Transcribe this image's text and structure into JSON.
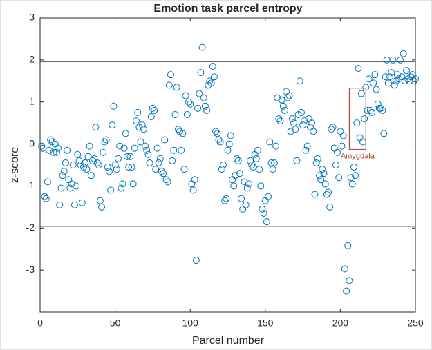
{
  "chart_data": {
    "type": "scatter",
    "title": "Emotion task parcel entropy",
    "xlabel": "Parcel number",
    "ylabel": "z-score",
    "xlim": [
      0,
      250
    ],
    "ylim": [
      -4,
      3
    ],
    "xticks": [
      0,
      50,
      100,
      150,
      200,
      250
    ],
    "yticks": [
      -3,
      -2,
      -1,
      0,
      1,
      2,
      3
    ],
    "color": "#0072bd",
    "hlines": [
      1.96,
      -1.96
    ],
    "annotation": {
      "label": "Amygdala",
      "x": [
        206,
        217
      ],
      "y": [
        -0.13,
        1.33
      ],
      "color": "#b5483a"
    },
    "x": [
      1,
      2,
      3,
      4,
      5,
      6,
      7,
      8,
      9,
      10,
      11,
      12,
      13,
      14,
      15,
      16,
      17,
      18,
      19,
      20,
      21,
      22,
      23,
      24,
      25,
      26,
      27,
      28,
      29,
      30,
      31,
      32,
      33,
      34,
      35,
      36,
      37,
      38,
      39,
      40,
      41,
      42,
      43,
      44,
      45,
      46,
      47,
      48,
      49,
      50,
      51,
      52,
      53,
      54,
      55,
      56,
      57,
      58,
      59,
      60,
      61,
      62,
      63,
      64,
      65,
      66,
      67,
      68,
      69,
      70,
      71,
      72,
      73,
      74,
      75,
      76,
      77,
      78,
      79,
      80,
      81,
      82,
      83,
      84,
      85,
      86,
      87,
      88,
      89,
      90,
      91,
      92,
      93,
      94,
      95,
      96,
      97,
      98,
      99,
      100,
      101,
      102,
      103,
      104,
      105,
      106,
      107,
      108,
      109,
      110,
      111,
      112,
      113,
      114,
      115,
      116,
      117,
      118,
      119,
      120,
      121,
      122,
      123,
      124,
      125,
      126,
      127,
      128,
      129,
      130,
      131,
      132,
      133,
      134,
      135,
      136,
      137,
      138,
      139,
      140,
      141,
      142,
      143,
      144,
      145,
      146,
      147,
      148,
      149,
      150,
      151,
      152,
      153,
      154,
      155,
      156,
      157,
      158,
      159,
      160,
      161,
      162,
      163,
      164,
      165,
      166,
      167,
      168,
      169,
      170,
      171,
      172,
      173,
      174,
      175,
      176,
      177,
      178,
      179,
      180,
      181,
      182,
      183,
      184,
      185,
      186,
      187,
      188,
      189,
      190,
      191,
      192,
      193,
      194,
      195,
      196,
      197,
      198,
      199,
      200,
      201,
      202,
      203,
      204,
      205,
      206,
      207,
      208,
      209,
      210,
      211,
      212,
      213,
      214,
      215,
      216,
      217,
      218,
      219,
      220,
      221,
      222,
      223,
      224,
      225,
      226,
      227,
      228,
      229,
      230,
      231,
      232,
      233,
      234,
      235,
      236,
      237,
      238,
      239,
      240,
      241,
      242,
      243,
      244,
      245,
      246,
      247,
      248,
      249,
      250
    ],
    "values": [
      -0.05,
      -0.1,
      -1.25,
      -1.3,
      -0.9,
      -0.15,
      0.1,
      0.05,
      -0.2,
      0.0,
      -0.2,
      -0.1,
      -1.45,
      -1.05,
      -0.75,
      -0.65,
      -0.45,
      -0.15,
      -0.85,
      -1.05,
      -0.95,
      -0.5,
      -1.45,
      -1.0,
      -0.25,
      -0.4,
      -0.5,
      -1.4,
      -0.55,
      -0.45,
      -0.6,
      -0.3,
      -0.05,
      -0.75,
      -0.4,
      -0.35,
      0.4,
      -0.45,
      -0.5,
      -1.35,
      -1.5,
      -0.2,
      0.05,
      0.1,
      -0.55,
      -0.65,
      -1.1,
      0.45,
      0.9,
      -0.5,
      -0.6,
      -0.35,
      -0.05,
      -1.05,
      -0.95,
      -0.1,
      0.25,
      -0.3,
      -0.55,
      -0.3,
      -0.55,
      -0.95,
      -0.1,
      0.55,
      0.75,
      0.4,
      0.05,
      0.45,
      0.35,
      -0.05,
      -0.15,
      -0.25,
      -0.45,
      0.65,
      0.85,
      0.8,
      -0.6,
      -0.1,
      -0.45,
      -0.35,
      -0.65,
      -0.7,
      0.1,
      -0.85,
      -0.9,
      1.4,
      1.65,
      -0.4,
      -0.15,
      0.7,
      1.35,
      0.35,
      0.3,
      -0.15,
      0.25,
      -0.6,
      1.15,
      0.7,
      1.0,
      0.95,
      -0.95,
      -1.1,
      -0.85,
      -2.77,
      0.85,
      1.2,
      1.7,
      2.3,
      1.1,
      0.9,
      0.8,
      1.4,
      1.5,
      1.45,
      1.85,
      1.6,
      0.3,
      0.25,
      0.1,
      0.05,
      -0.6,
      -0.5,
      -1.35,
      -1.3,
      -0.15,
      0.0,
      0.2,
      -0.85,
      -1.0,
      -0.75,
      -0.35,
      -0.4,
      -0.7,
      -1.3,
      -1.55,
      -0.9,
      -1.45,
      -1.05,
      -0.95,
      -0.4,
      -0.5,
      -0.55,
      -0.25,
      -0.35,
      -0.15,
      -0.6,
      -1.0,
      -1.55,
      -1.65,
      -1.35,
      -1.85,
      -1.25,
      0.05,
      -0.45,
      -0.6,
      -0.45,
      -0.05,
      1.1,
      0.6,
      0.55,
      1.05,
      0.9,
      0.8,
      1.25,
      1.1,
      1.15,
      0.3,
      0.6,
      0.5,
      0.35,
      -0.4,
      0.7,
      1.5,
      0.75,
      0.45,
      0.55,
      -0.15,
      -0.05,
      0.6,
      0.4,
      0.5,
      0.3,
      -1.2,
      -0.45,
      -0.35,
      -0.75,
      -0.85,
      -0.6,
      -0.7,
      -0.95,
      -1.2,
      -1.15,
      -1.5,
      0.35,
      0.4,
      -0.1,
      -0.5,
      -0.2,
      -0.8,
      0.3,
      -0.05,
      0.2,
      -2.97,
      -3.5,
      -2.42,
      -3.25,
      -0.8,
      -0.95,
      -0.55,
      -0.75,
      0.5,
      1.8,
      0.15,
      1.2,
      0.05,
      0.6,
      1.35,
      0.8,
      1.55,
      0.8,
      0.75,
      1.45,
      1.65,
      1.3,
      0.95,
      0.85,
      0.85,
      0.8,
      0.25,
      1.6,
      2.0,
      1.45,
      1.6,
      1.7,
      2.0,
      1.4,
      1.5,
      1.65,
      1.55,
      2.0,
      1.6,
      2.15,
      1.5,
      1.75,
      1.55,
      1.5,
      1.6,
      1.65,
      1.5,
      1.55
    ]
  }
}
